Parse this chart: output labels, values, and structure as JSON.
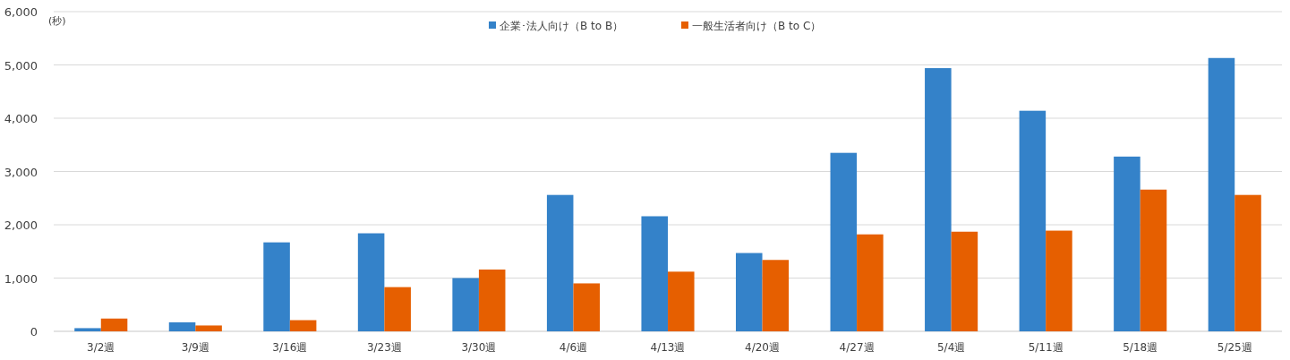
{
  "chart_data": {
    "type": "bar",
    "ylabel": "(秒)",
    "categories": [
      "3/2週",
      "3/9週",
      "3/16週",
      "3/23週",
      "3/30週",
      "4/6週",
      "4/13週",
      "4/20週",
      "4/27週",
      "5/4週",
      "5/11週",
      "5/18週",
      "5/25週"
    ],
    "series": [
      {
        "name": "企業･法人向け（B to B）",
        "color": "#3482c9",
        "values": [
          60,
          170,
          1670,
          1840,
          1000,
          2560,
          2160,
          1470,
          3350,
          4940,
          4140,
          3280,
          5130
        ]
      },
      {
        "name": "一般生活者向け（B to C）",
        "color": "#e65f00",
        "values": [
          240,
          110,
          210,
          830,
          1160,
          900,
          1120,
          1340,
          1820,
          1870,
          1890,
          2660,
          2560
        ]
      }
    ],
    "ylim": [
      0,
      6000
    ],
    "yticks": [
      {
        "value": 0,
        "label": "0"
      },
      {
        "value": 1000,
        "label": "1,000"
      },
      {
        "value": 2000,
        "label": "2,000"
      },
      {
        "value": 3000,
        "label": "3,000"
      },
      {
        "value": 4000,
        "label": "4,000"
      },
      {
        "value": 5000,
        "label": "5,000"
      },
      {
        "value": 6000,
        "label": "6,000"
      }
    ],
    "grid": "y",
    "legend": "top"
  }
}
